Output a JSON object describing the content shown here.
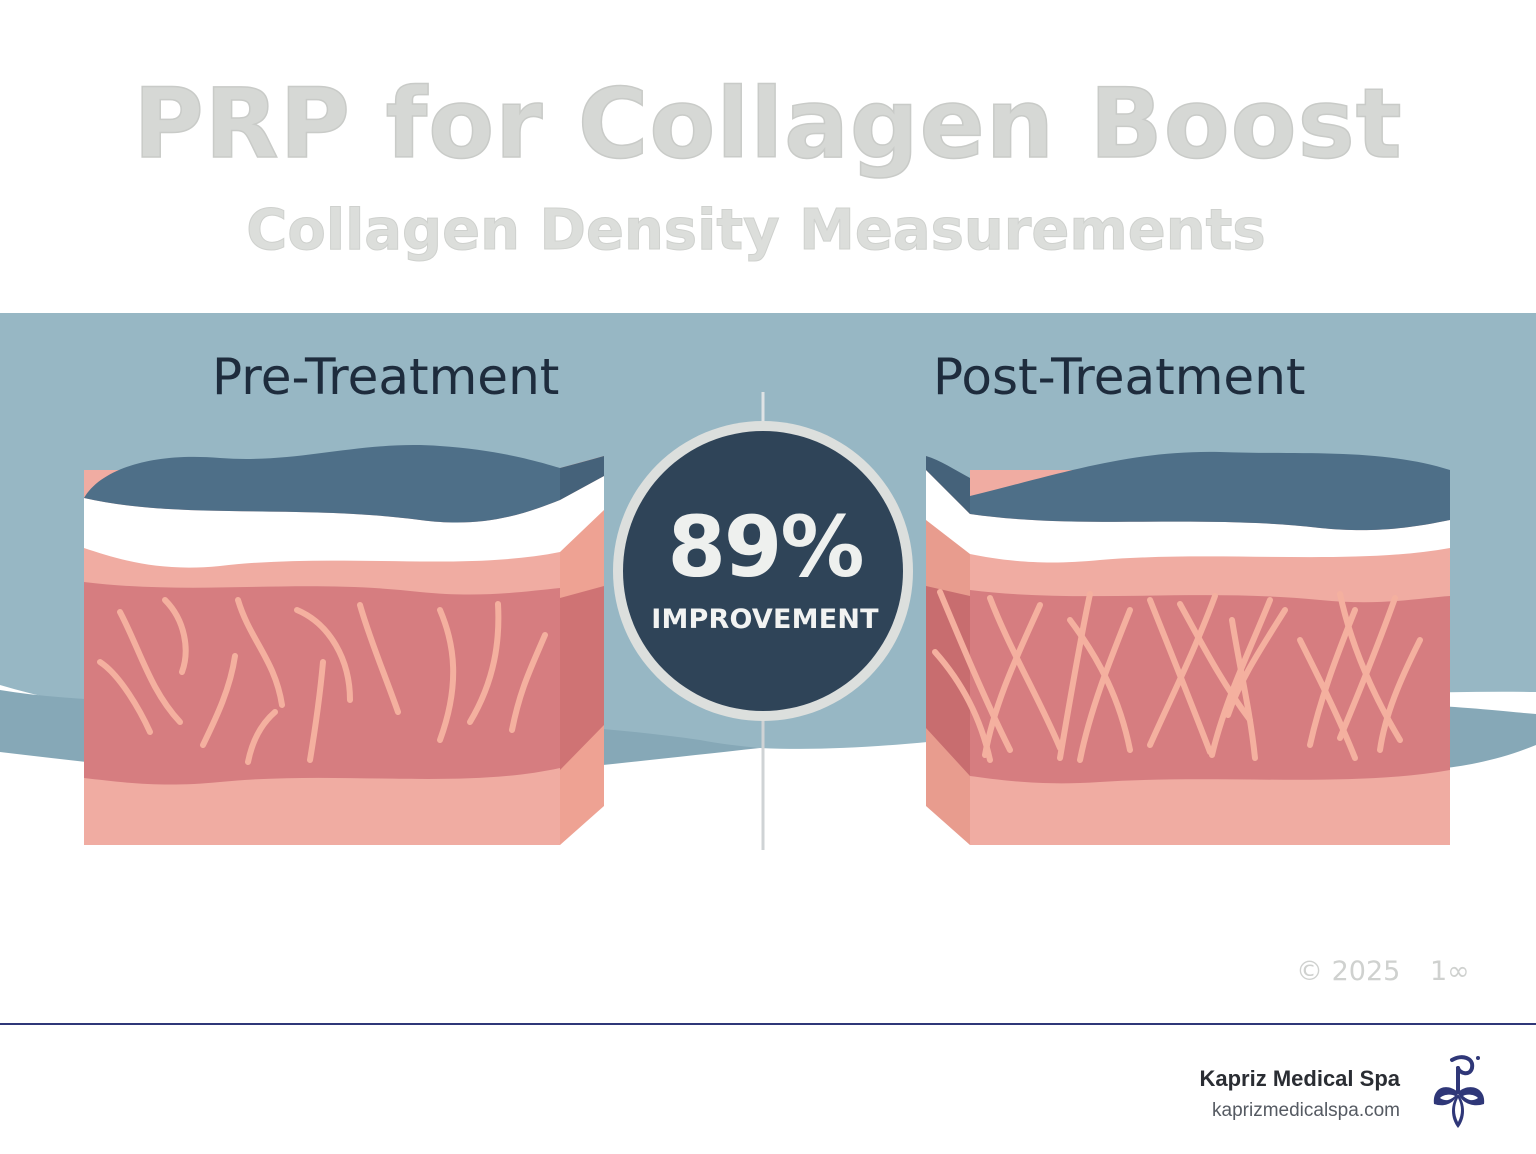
{
  "header": {
    "title": "PRP for Collagen Boost",
    "subtitle": "Collagen Density Measurements"
  },
  "panels": {
    "pre": {
      "label": "Pre-Treatment"
    },
    "post": {
      "label": "Post-Treatment"
    }
  },
  "badge": {
    "value": "89%",
    "caption": "IMPROVEMENT"
  },
  "watermark": {
    "copyright": "© 2025",
    "page": "1∞"
  },
  "footer": {
    "brand_name": "Kapriz Medical Spa",
    "brand_url": "kaprizmedicalspa.com"
  },
  "colors": {
    "band": "#97b7c4",
    "band_dark": "#84a6b5",
    "epidermis": "#4e6f88",
    "dermis": "#d67d80",
    "dermis_light": "#f0aca2",
    "fiber": "#f4b09f",
    "badge": "#2f4458",
    "brand": "#2f3778"
  },
  "icons": [
    "spa-flower-logo-icon"
  ]
}
